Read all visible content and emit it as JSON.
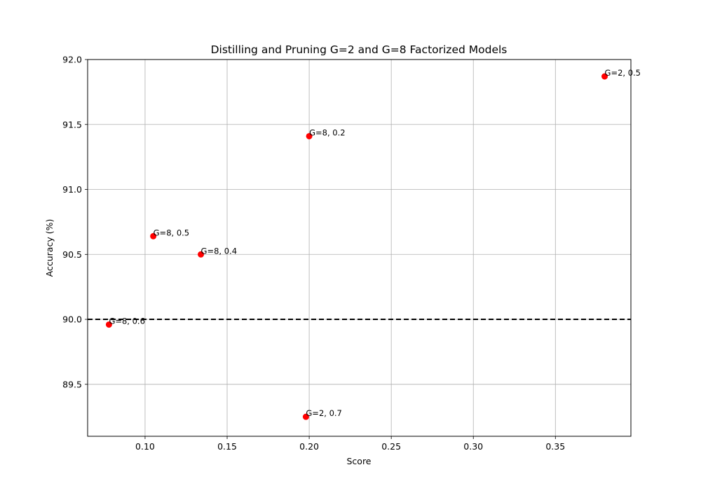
{
  "chart_data": {
    "type": "scatter",
    "title": "Distilling and Pruning G=2 and G=8 Factorized Models",
    "xlabel": "Score",
    "ylabel": "Accuracy (%)",
    "xlim": [
      0.065,
      0.396
    ],
    "ylim": [
      89.1,
      92.0
    ],
    "xticks": [
      0.1,
      0.15,
      0.2,
      0.25,
      0.3,
      0.35
    ],
    "xtick_labels": [
      "0.10",
      "0.15",
      "0.20",
      "0.25",
      "0.30",
      "0.35"
    ],
    "yticks": [
      89.5,
      90.0,
      90.5,
      91.0,
      91.5,
      92.0
    ],
    "ytick_labels": [
      "89.5",
      "90.0",
      "90.5",
      "91.0",
      "91.5",
      "92.0"
    ],
    "grid": true,
    "point_color": "#ff0000",
    "points": [
      {
        "x": 0.38,
        "y": 91.87,
        "label": "G=2, 0.5"
      },
      {
        "x": 0.2,
        "y": 91.41,
        "label": "G=8, 0.2"
      },
      {
        "x": 0.105,
        "y": 90.64,
        "label": "G=8, 0.5"
      },
      {
        "x": 0.134,
        "y": 90.5,
        "label": "G=8, 0.4"
      },
      {
        "x": 0.078,
        "y": 89.96,
        "label": "G=8, 0.6"
      },
      {
        "x": 0.198,
        "y": 89.25,
        "label": "G=2, 0.7"
      }
    ],
    "reference_line": {
      "y": 90.0,
      "style": "dashed",
      "color": "#000000"
    }
  }
}
